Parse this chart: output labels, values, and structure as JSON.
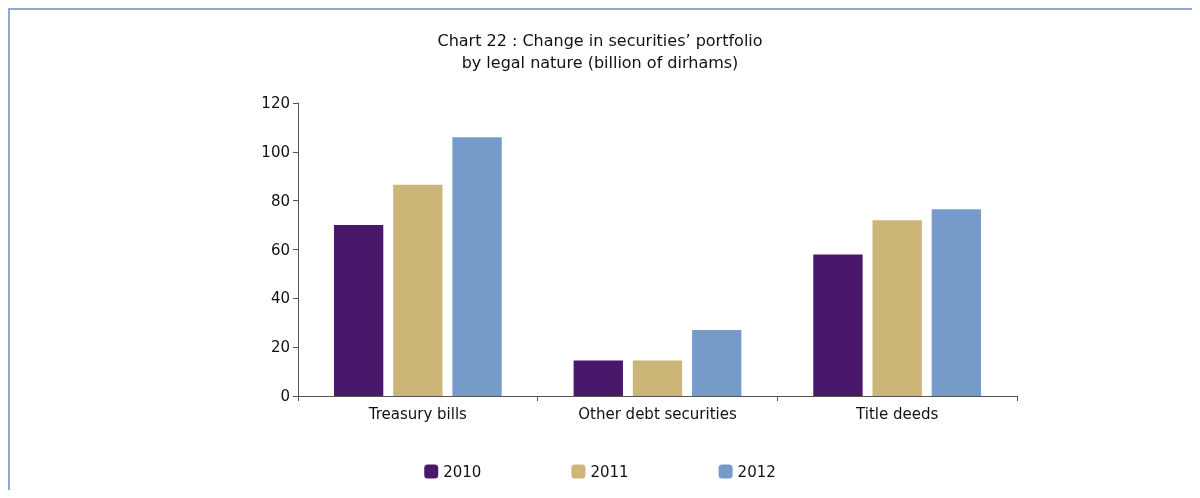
{
  "chart_data": {
    "type": "bar",
    "title": "Chart 22 : Change in securities’ portfolio\nby legal nature (billion of dirhams)",
    "categories": [
      "Treasury bills",
      "Other debt securities",
      "Title deeds"
    ],
    "series": [
      {
        "name": "2010",
        "color": "#4a186b",
        "values": [
          70,
          14.5,
          58
        ]
      },
      {
        "name": "2011",
        "color": "#cbb677",
        "values": [
          86.5,
          14.5,
          72
        ]
      },
      {
        "name": "2012",
        "color": "#769bc8",
        "values": [
          106,
          27,
          76.5
        ]
      }
    ],
    "ylim": [
      0,
      120
    ],
    "yticks": [
      0,
      20,
      40,
      60,
      80,
      100,
      120
    ],
    "grid": false,
    "legend": "bottom"
  }
}
